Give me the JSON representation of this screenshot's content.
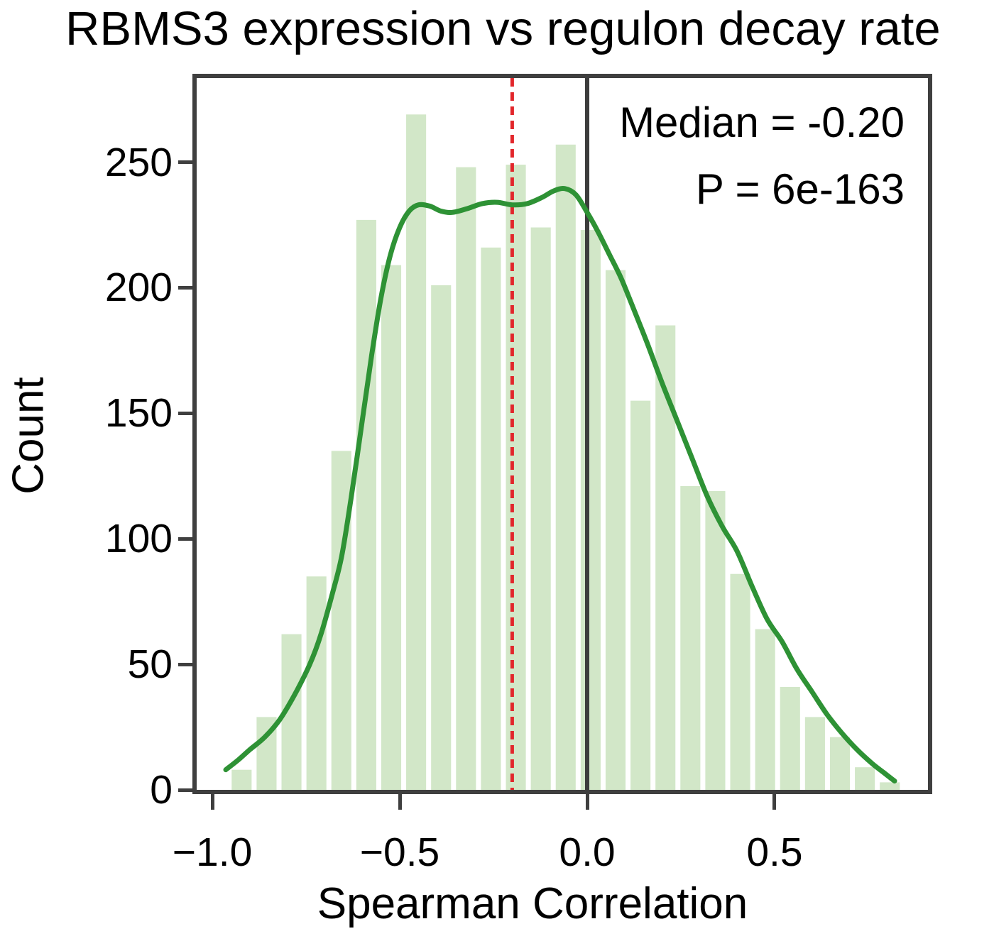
{
  "chart_data": {
    "type": "histogram+kde",
    "title": "RBMS3 expression vs regulon decay rate",
    "xlabel": "Spearman Correlation",
    "ylabel": "Count",
    "x_range": [
      -1.0417,
      0.9091
    ],
    "y_range": [
      0,
      283.5
    ],
    "grid": false,
    "annotations": [
      "Median = -0.20",
      "P = 6e-163"
    ],
    "x_axis_ticks": [
      {
        "value": -1.0,
        "label": "−1.0"
      },
      {
        "value": -0.5,
        "label": "−0.5"
      },
      {
        "value": 0.0,
        "label": "0.0"
      },
      {
        "value": 0.5,
        "label": "0.5"
      }
    ],
    "y_axis_ticks": [
      {
        "value": 0,
        "label": "0"
      },
      {
        "value": 50,
        "label": "50"
      },
      {
        "value": 100,
        "label": "100"
      },
      {
        "value": 150,
        "label": "150"
      },
      {
        "value": 200,
        "label": "200"
      },
      {
        "value": 250,
        "label": "250"
      }
    ],
    "histogram": {
      "bin_start": -0.955,
      "bin_width": 0.0665,
      "counts": [
        8,
        29,
        62,
        85,
        135,
        227,
        209,
        269,
        201,
        248,
        216,
        249,
        224,
        257,
        223,
        207,
        155,
        185,
        121,
        119,
        86,
        64,
        41,
        29,
        21,
        9,
        3
      ]
    },
    "kde": {
      "points": [
        [
          -0.964,
          8
        ],
        [
          -0.93,
          12
        ],
        [
          -0.9,
          16
        ],
        [
          -0.86,
          21
        ],
        [
          -0.82,
          28
        ],
        [
          -0.78,
          38
        ],
        [
          -0.74,
          50
        ],
        [
          -0.71,
          62
        ],
        [
          -0.68,
          78
        ],
        [
          -0.655,
          93
        ],
        [
          -0.63,
          116
        ],
        [
          -0.6,
          147
        ],
        [
          -0.575,
          173
        ],
        [
          -0.55,
          196
        ],
        [
          -0.525,
          213
        ],
        [
          -0.5,
          224
        ],
        [
          -0.475,
          230.5
        ],
        [
          -0.45,
          233
        ],
        [
          -0.42,
          232.5
        ],
        [
          -0.39,
          230.5
        ],
        [
          -0.36,
          230
        ],
        [
          -0.32,
          231.5
        ],
        [
          -0.28,
          233.5
        ],
        [
          -0.24,
          234
        ],
        [
          -0.2,
          233
        ],
        [
          -0.16,
          233.5
        ],
        [
          -0.12,
          236
        ],
        [
          -0.09,
          238.5
        ],
        [
          -0.06,
          239.5
        ],
        [
          -0.03,
          237
        ],
        [
          0.0,
          230
        ],
        [
          0.03,
          222
        ],
        [
          0.06,
          213
        ],
        [
          0.09,
          204
        ],
        [
          0.12,
          193
        ],
        [
          0.16,
          178
        ],
        [
          0.2,
          162
        ],
        [
          0.24,
          147
        ],
        [
          0.28,
          132
        ],
        [
          0.32,
          117
        ],
        [
          0.36,
          105
        ],
        [
          0.4,
          95
        ],
        [
          0.44,
          81
        ],
        [
          0.48,
          68
        ],
        [
          0.52,
          59
        ],
        [
          0.56,
          48
        ],
        [
          0.6,
          39
        ],
        [
          0.64,
          30
        ],
        [
          0.68,
          22.5
        ],
        [
          0.72,
          16
        ],
        [
          0.76,
          10.5
        ],
        [
          0.79,
          7
        ],
        [
          0.82,
          3.5
        ]
      ]
    },
    "median_line": {
      "x": -0.2,
      "style": "dashed"
    },
    "zero_line": {
      "x": 0.0
    },
    "colors": {
      "bar_fill": "#d2e7c8",
      "kde_line": "#2e9235",
      "median_line": "#e2262b",
      "zero_line": "#3c3c3c",
      "spine": "#3f3f3f",
      "text": "#000000"
    }
  }
}
